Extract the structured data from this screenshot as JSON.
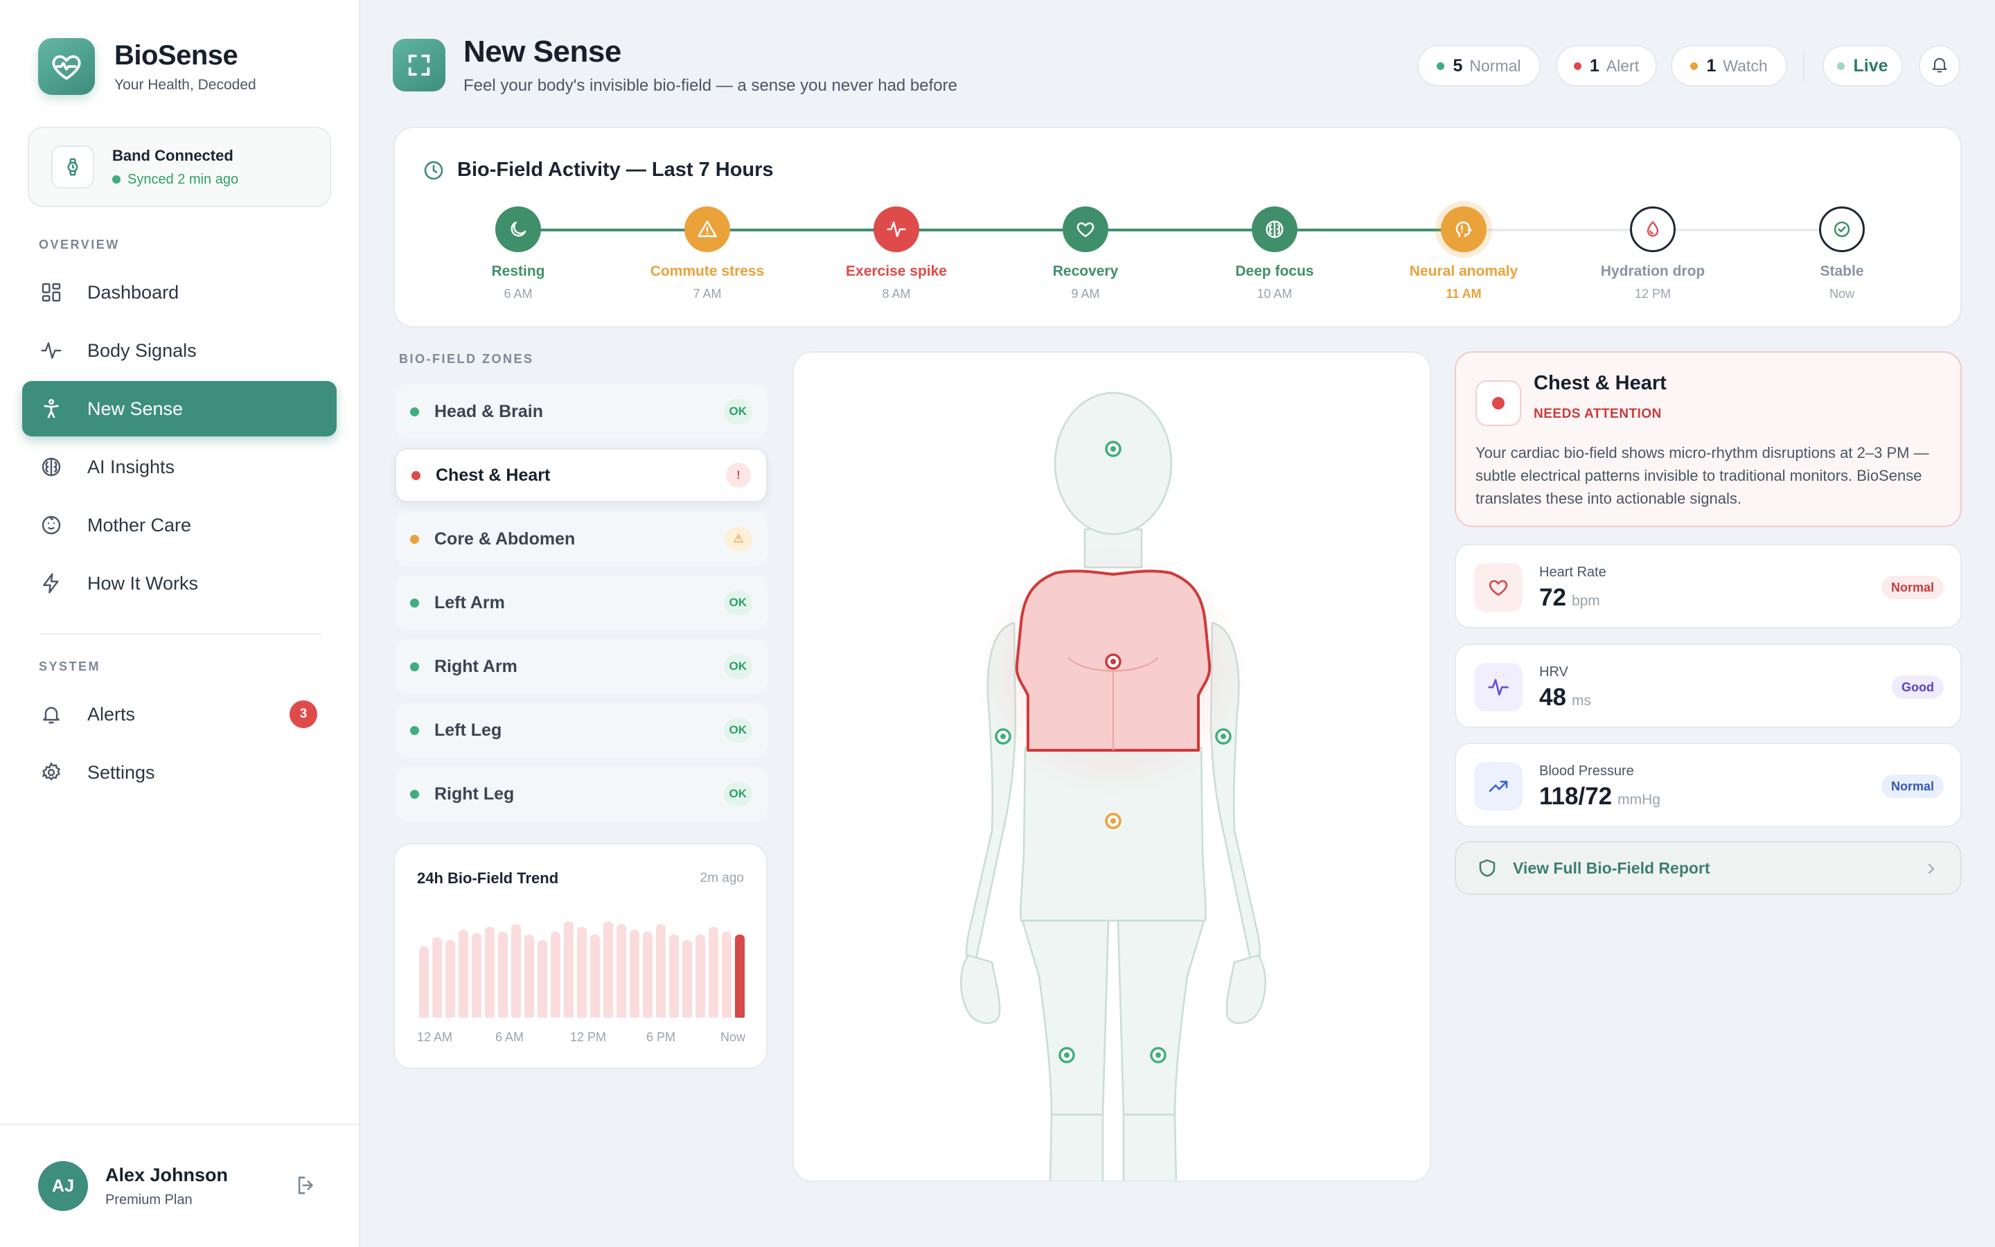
{
  "brand": {
    "name": "BioSense",
    "tagline": "Your Health, Decoded"
  },
  "device": {
    "title": "Band Connected",
    "status": "Synced 2 min ago"
  },
  "nav": {
    "overview_label": "OVERVIEW",
    "system_label": "SYSTEM",
    "items": [
      {
        "label": "Dashboard",
        "icon": "grid-icon"
      },
      {
        "label": "Body Signals",
        "icon": "pulse-icon"
      },
      {
        "label": "New Sense",
        "icon": "person-icon",
        "active": true
      },
      {
        "label": "AI Insights",
        "icon": "brain-icon"
      },
      {
        "label": "Mother Care",
        "icon": "baby-face-icon"
      },
      {
        "label": "How It Works",
        "icon": "bolt-icon"
      }
    ],
    "system_items": [
      {
        "label": "Alerts",
        "icon": "bell-icon",
        "badge": "3"
      },
      {
        "label": "Settings",
        "icon": "gear-icon"
      }
    ]
  },
  "user": {
    "initials": "AJ",
    "name": "Alex Johnson",
    "plan": "Premium Plan"
  },
  "header": {
    "title": "New Sense",
    "subtitle": "Feel your body's invisible bio-field — a sense you never had before",
    "status_pills": [
      {
        "count": "5",
        "label": "Normal",
        "color": "#3fae7c"
      },
      {
        "count": "1",
        "label": "Alert",
        "color": "#df4a4a"
      },
      {
        "count": "1",
        "label": "Watch",
        "color": "#eaa23a"
      }
    ],
    "live_label": "Live"
  },
  "timeline": {
    "title": "Bio-Field Activity — Last 7 Hours",
    "steps": [
      {
        "label": "Resting",
        "time": "6 AM",
        "icon": "moon-icon",
        "color": "#3f8f6b"
      },
      {
        "label": "Commute stress",
        "time": "7 AM",
        "icon": "warning-icon",
        "color": "#eaa23a"
      },
      {
        "label": "Exercise spike",
        "time": "8 AM",
        "icon": "pulse-icon",
        "color": "#df4a4a"
      },
      {
        "label": "Recovery",
        "time": "9 AM",
        "icon": "heart-icon",
        "color": "#3f8f6b"
      },
      {
        "label": "Deep focus",
        "time": "10 AM",
        "icon": "brain-icon",
        "color": "#3f8f6b"
      },
      {
        "label": "Neural anomaly",
        "time": "11 AM",
        "icon": "brain-alert-icon",
        "color": "#eaa23a"
      },
      {
        "label": "Hydration drop",
        "time": "12 PM",
        "icon": "droplet-icon",
        "color": "#8a94a2"
      },
      {
        "label": "Stable",
        "time": "Now",
        "icon": "check-circle-icon",
        "color": "#8a94a2"
      }
    ]
  },
  "zones": {
    "label": "BIO-FIELD ZONES",
    "items": [
      {
        "name": "Head & Brain",
        "status": "OK",
        "color": "#3fae7c"
      },
      {
        "name": "Chest & Heart",
        "status": "!",
        "color": "#df4a4a",
        "selected": true
      },
      {
        "name": "Core & Abdomen",
        "status": "⚠",
        "color": "#eaa23a"
      },
      {
        "name": "Left Arm",
        "status": "OK",
        "color": "#3fae7c"
      },
      {
        "name": "Right Arm",
        "status": "OK",
        "color": "#3fae7c"
      },
      {
        "name": "Left Leg",
        "status": "OK",
        "color": "#3fae7c"
      },
      {
        "name": "Right Leg",
        "status": "OK",
        "color": "#3fae7c"
      }
    ]
  },
  "trend": {
    "title": "24h Bio-Field Trend",
    "updated": "2m ago",
    "values": [
      55,
      62,
      60,
      68,
      65,
      70,
      66,
      72,
      64,
      60,
      66,
      74,
      70,
      64,
      74,
      72,
      68,
      66,
      72,
      64,
      60,
      64,
      70,
      66,
      64
    ],
    "ticks": [
      "12 AM",
      "6 AM",
      "12 PM",
      "6 PM",
      "Now"
    ]
  },
  "detail": {
    "title": "Chest & Heart",
    "status": "NEEDS ATTENTION",
    "description": "Your cardiac bio-field shows micro-rhythm disruptions at 2–3 PM — subtle electrical patterns invisible to traditional monitors. BioSense translates these into actionable signals."
  },
  "metrics": [
    {
      "label": "Heart Rate",
      "value": "72",
      "unit": "bpm",
      "badge": "Normal",
      "icon": "heart-icon"
    },
    {
      "label": "HRV",
      "value": "48",
      "unit": "ms",
      "badge": "Good",
      "icon": "pulse-icon"
    },
    {
      "label": "Blood Pressure",
      "value": "118/72",
      "unit": "mmHg",
      "badge": "Normal",
      "icon": "trend-up-icon"
    }
  ],
  "report_button": "View Full Bio-Field Report"
}
